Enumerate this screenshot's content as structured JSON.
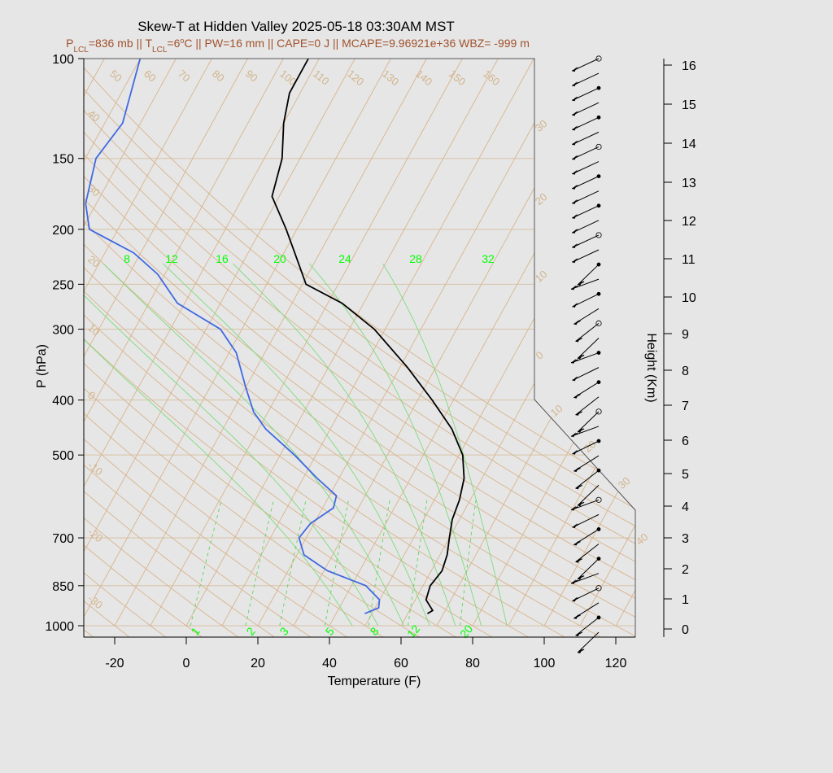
{
  "chart_data": {
    "type": "skew-t",
    "title": "Skew-T at Hidden Valley 2025-05-18 03:30AM MST",
    "subtitle": {
      "lcl_p": "P",
      "lcl_p_sub": "LCL",
      "lcl_p_val": "=836 mb || T",
      "lcl_t_sub": "LCL",
      "lcl_t_val": "=6",
      "deg": "o",
      "rest": "C || PW=16 mm || CAPE=0 J || MCAPE=9.96921e+36 WBZ= -999 m"
    },
    "xlabel": "Temperature (F)",
    "ylabel": "P (hPa)",
    "y2label": "Height (Km)",
    "x_ticks": [
      -20,
      0,
      20,
      40,
      60,
      80,
      100,
      120
    ],
    "x_tick_labels": [
      "-20",
      "0",
      "20",
      "40",
      "60",
      "80",
      "100",
      "120"
    ],
    "p_ticks": [
      100,
      150,
      200,
      250,
      300,
      400,
      500,
      700,
      850,
      1000
    ],
    "p_tick_labels": [
      "100",
      "150",
      "200",
      "250",
      "300",
      "400",
      "500",
      "700",
      "850",
      "1000"
    ],
    "height_ticks": [
      0,
      1,
      2,
      3,
      4,
      5,
      6,
      7,
      8,
      9,
      10,
      11,
      12,
      13,
      14,
      15,
      16
    ],
    "height_tick_labels": [
      "0",
      "1",
      "2",
      "3",
      "4",
      "5",
      "6",
      "7",
      "8",
      "9",
      "10",
      "11",
      "12",
      "13",
      "14",
      "15",
      "16"
    ],
    "height_axis_range": [
      0,
      16
    ],
    "dry_adiabat_labels": [
      "50",
      "60",
      "70",
      "80",
      "90",
      "100",
      "110",
      "120",
      "130",
      "140",
      "150",
      "160",
      "40",
      "30",
      "20",
      "10",
      "0",
      "-10",
      "-20",
      "-30"
    ],
    "moist_adiabat_labels": [
      "8",
      "12",
      "16",
      "20",
      "24",
      "28",
      "32"
    ],
    "mixing_ratio_labels": [
      "1",
      "2",
      "3",
      "5",
      "8",
      "12",
      "20"
    ],
    "isotherm_labels": [
      "30",
      "20",
      "10",
      "0",
      "10",
      "20",
      "30",
      "40"
    ],
    "series": [
      {
        "name": "temperature",
        "color": "#000000",
        "points": [
          [
            952,
            65.5
          ],
          [
            940,
            66.5
          ],
          [
            900,
            63
          ],
          [
            850,
            62
          ],
          [
            800,
            63
          ],
          [
            750,
            62
          ],
          [
            700,
            60
          ],
          [
            650,
            58
          ],
          [
            600,
            57
          ],
          [
            550,
            55
          ],
          [
            500,
            51
          ],
          [
            450,
            44
          ],
          [
            400,
            34
          ],
          [
            350,
            22
          ],
          [
            300,
            7
          ],
          [
            270,
            -6
          ],
          [
            250,
            -19
          ],
          [
            220,
            -27
          ],
          [
            200,
            -33
          ],
          [
            175,
            -42
          ],
          [
            150,
            -45
          ],
          [
            130,
            -50
          ],
          [
            115,
            -53
          ],
          [
            100,
            -53
          ]
        ]
      },
      {
        "name": "dewpoint",
        "color": "#4169e1",
        "points": [
          [
            952,
            48
          ],
          [
            930,
            51
          ],
          [
            900,
            50
          ],
          [
            850,
            44
          ],
          [
            800,
            31
          ],
          [
            750,
            22
          ],
          [
            700,
            18
          ],
          [
            660,
            19
          ],
          [
            620,
            23
          ],
          [
            590,
            22
          ],
          [
            550,
            14
          ],
          [
            500,
            4
          ],
          [
            450,
            -8
          ],
          [
            420,
            -14
          ],
          [
            380,
            -20
          ],
          [
            330,
            -28
          ],
          [
            300,
            -36
          ],
          [
            270,
            -52
          ],
          [
            240,
            -62
          ],
          [
            220,
            -72
          ],
          [
            200,
            -88
          ],
          [
            180,
            -93
          ],
          [
            150,
            -97
          ],
          [
            130,
            -95
          ],
          [
            100,
            -100
          ]
        ]
      }
    ],
    "wind_barb_levels": 40,
    "grid": true
  }
}
